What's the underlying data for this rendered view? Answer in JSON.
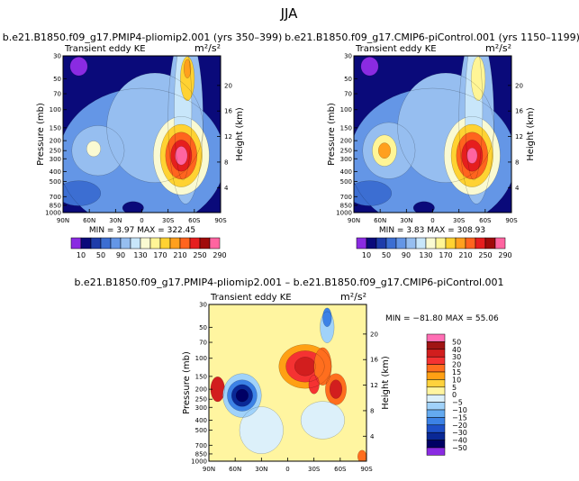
{
  "figure_title": "JJA",
  "units_label": "m²/s²",
  "field_label": "Transient eddy KE",
  "left_axis_label": "Pressure (mb)",
  "right_axis_label": "Height (km)",
  "pressure_ticks": [
    "30",
    "50",
    "70",
    "100",
    "150",
    "200",
    "250",
    "300",
    "400",
    "500",
    "700",
    "850",
    "1000"
  ],
  "height_ticks": [
    "20",
    "16",
    "12",
    "8",
    "4"
  ],
  "lat_ticks": [
    "90N",
    "60N",
    "30N",
    "0",
    "30S",
    "60S",
    "90S"
  ],
  "chart_data": [
    {
      "type": "heatmap",
      "title": "b.e21.B1850.f09_g17.PMIP4-pliomip2.001 (yrs 350–399)",
      "stats_label": "MIN =    3.97   MAX = 322.45",
      "min": 3.97,
      "max": 322.45,
      "xlim": [
        "90N",
        "90S"
      ],
      "ylim": [
        1000,
        30
      ],
      "colorbar_labels": [
        "10",
        "50",
        "90",
        "130",
        "170",
        "210",
        "250",
        "290"
      ],
      "features": [
        {
          "lat": -45,
          "p": 275,
          "value": 322
        },
        {
          "lat": -52,
          "p": 45,
          "value": 260
        },
        {
          "lat": 60,
          "p": 250,
          "value": 110
        },
        {
          "lat": 70,
          "p": 35,
          "value": 10
        }
      ]
    },
    {
      "type": "heatmap",
      "title": "b.e21.B1850.f09_g17.CMIP6-piControl.001 (yrs 1150–1199)",
      "stats_label": "MIN =    3.83   MAX = 308.93",
      "min": 3.83,
      "max": 308.93,
      "xlim": [
        "90N",
        "90S"
      ],
      "ylim": [
        1000,
        30
      ],
      "colorbar_labels": [
        "10",
        "50",
        "90",
        "130",
        "170",
        "210",
        "250",
        "290"
      ],
      "features": [
        {
          "lat": -45,
          "p": 275,
          "value": 309
        },
        {
          "lat": -52,
          "p": 45,
          "value": 240
        },
        {
          "lat": 55,
          "p": 250,
          "value": 190
        },
        {
          "lat": 70,
          "p": 35,
          "value": 10
        }
      ]
    },
    {
      "type": "heatmap",
      "title": "b.e21.B1850.f09_g17.PMIP4-pliomip2.001 – b.e21.B1850.f09_g17.CMIP6-piControl.001",
      "stats_label": "MIN = −81.80   MAX =  55.06",
      "min": -81.8,
      "max": 55.06,
      "xlim": [
        "90N",
        "90S"
      ],
      "ylim": [
        1000,
        30
      ],
      "colorbar_labels": [
        "50",
        "40",
        "30",
        "20",
        "15",
        "10",
        "5",
        "0",
        "−5",
        "−10",
        "−15",
        "−20",
        "−30",
        "−40",
        "−50"
      ],
      "features": [
        {
          "lat": 52,
          "p": 230,
          "value": -70
        },
        {
          "lat": 80,
          "p": 200,
          "value": 40
        },
        {
          "lat": -15,
          "p": 120,
          "value": 30
        },
        {
          "lat": -55,
          "p": 200,
          "value": 40
        },
        {
          "lat": -45,
          "p": 40,
          "value": -30
        }
      ]
    }
  ],
  "seq_colors": [
    "#8a2be2",
    "#0a0a7a",
    "#1e3caa",
    "#3c6ed2",
    "#6496e6",
    "#96bef0",
    "#c8e6fa",
    "#fafad2",
    "#fff596",
    "#ffd232",
    "#ffa01e",
    "#ff641e",
    "#e61e1e",
    "#a00a0a",
    "#ff64a0"
  ],
  "div_colors": [
    "#ff6eb4",
    "#a01414",
    "#d21e1e",
    "#f53232",
    "#ff6e1e",
    "#ffa014",
    "#ffd23c",
    "#fff5a0",
    "#dcf0fa",
    "#a0d2fa",
    "#64aaf0",
    "#3c82e6",
    "#1e50c8",
    "#0a2896",
    "#000064",
    "#8a2be2"
  ]
}
